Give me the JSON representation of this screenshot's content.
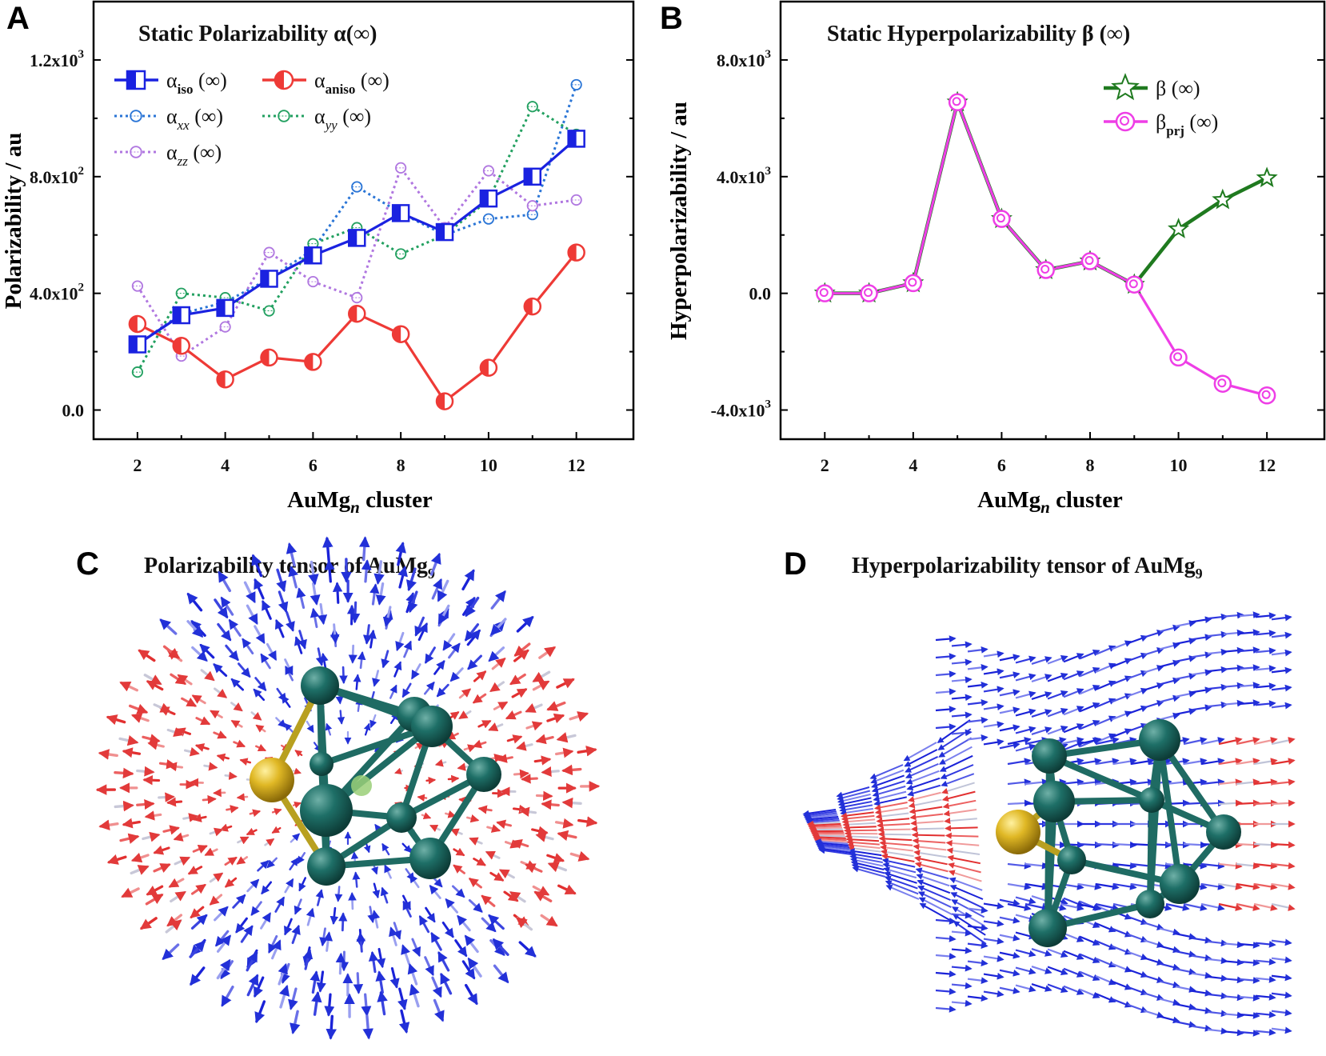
{
  "panels": {
    "a": {
      "letter": "A",
      "title": "Static Polarizability α(∞)"
    },
    "b": {
      "letter": "B",
      "title": "Static Hyperpolarizability β (∞)"
    },
    "c": {
      "letter": "C",
      "title_main": "Polarizability tensor of AuMg",
      "title_sub": "9"
    },
    "d": {
      "letter": "D",
      "title_main": "Hyperpolarizability tensor of AuMg",
      "title_sub": "9"
    }
  },
  "chart_data": [
    {
      "type": "line",
      "title": "Static Polarizability α(∞)",
      "xlabel_main": "AuMg",
      "xlabel_sub": "n",
      "xlabel_rest": " cluster",
      "ylabel": "Polarizability / au",
      "xlim": [
        1,
        13.3
      ],
      "ylim": [
        -100,
        1400
      ],
      "x": [
        2,
        3,
        4,
        5,
        6,
        7,
        8,
        9,
        10,
        11,
        12
      ],
      "x_ticks": [
        "2",
        "4",
        "6",
        "8",
        "10",
        "12"
      ],
      "y_ticks": [
        {
          "value": 0,
          "base": "0.0",
          "exp": ""
        },
        {
          "value": 400,
          "base": "4.0x10",
          "exp": "2"
        },
        {
          "value": 800,
          "base": "8.0x10",
          "exp": "2"
        },
        {
          "value": 1200,
          "base": "1.2x10",
          "exp": "3"
        }
      ],
      "series": [
        {
          "name": "α_iso (∞)",
          "greek": "α",
          "sub": "iso",
          "suffix": " (∞)",
          "color": "#1a22e0",
          "style": "solid",
          "marker": "half-square",
          "values": [
            225,
            325,
            350,
            450,
            530,
            590,
            675,
            610,
            725,
            800,
            930
          ]
        },
        {
          "name": "α_aniso (∞)",
          "greek": "α",
          "sub": "aniso",
          "suffix": " (∞)",
          "color": "#ee3a36",
          "style": "solid",
          "marker": "half-circle",
          "values": [
            295,
            220,
            105,
            180,
            165,
            330,
            260,
            30,
            145,
            355,
            540
          ]
        },
        {
          "name": "α_xx (∞)",
          "greek": "α",
          "sub": "xx",
          "suffix": " (∞)",
          "color": "#2a75d6",
          "style": "dotted",
          "marker": "open-circle",
          "values": [
            225,
            330,
            370,
            450,
            550,
            765,
            675,
            600,
            655,
            670,
            1115
          ]
        },
        {
          "name": "α_yy (∞)",
          "greek": "α",
          "sub": "yy",
          "suffix": " (∞)",
          "color": "#22a060",
          "style": "dotted",
          "marker": "open-circle",
          "values": [
            130,
            400,
            385,
            340,
            570,
            625,
            535,
            600,
            720,
            1040,
            945
          ]
        },
        {
          "name": "α_zz (∞)",
          "greek": "α",
          "sub": "zz",
          "suffix": " (∞)",
          "color": "#b077e0",
          "style": "dotted",
          "marker": "open-circle",
          "values": [
            425,
            185,
            285,
            540,
            440,
            385,
            830,
            625,
            820,
            700,
            720
          ]
        }
      ]
    },
    {
      "type": "line",
      "title": "Static Hyperpolarizability β (∞)",
      "xlabel_main": "AuMg",
      "xlabel_sub": "n",
      "xlabel_rest": " cluster",
      "ylabel": "Hyperpolarizability / au",
      "xlim": [
        1,
        13.3
      ],
      "ylim": [
        -5000,
        10000
      ],
      "x": [
        2,
        3,
        4,
        5,
        6,
        7,
        8,
        9,
        10,
        11,
        12
      ],
      "x_ticks": [
        "2",
        "4",
        "6",
        "8",
        "10",
        "12"
      ],
      "y_ticks": [
        {
          "value": -4000,
          "base": "-4.0x10",
          "exp": "3"
        },
        {
          "value": 0,
          "base": "0.0",
          "exp": ""
        },
        {
          "value": 4000,
          "base": "4.0x10",
          "exp": "3"
        },
        {
          "value": 8000,
          "base": "8.0x10",
          "exp": "3"
        }
      ],
      "series": [
        {
          "name": "β (∞)",
          "greek": "β",
          "sub": "",
          "suffix": " (∞)",
          "color": "#1f7a1f",
          "style": "solid",
          "marker": "star",
          "values": [
            0,
            0,
            350,
            6550,
            2550,
            800,
            1100,
            300,
            2200,
            3200,
            3950
          ]
        },
        {
          "name": "β_prj (∞)",
          "greek": "β",
          "sub": "prj",
          "suffix": " (∞)",
          "color": "#ee3ee6",
          "style": "solid",
          "marker": "circle-dot",
          "values": [
            0,
            0,
            350,
            6550,
            2550,
            800,
            1100,
            300,
            -2200,
            -3100,
            -3500
          ]
        }
      ]
    }
  ]
}
